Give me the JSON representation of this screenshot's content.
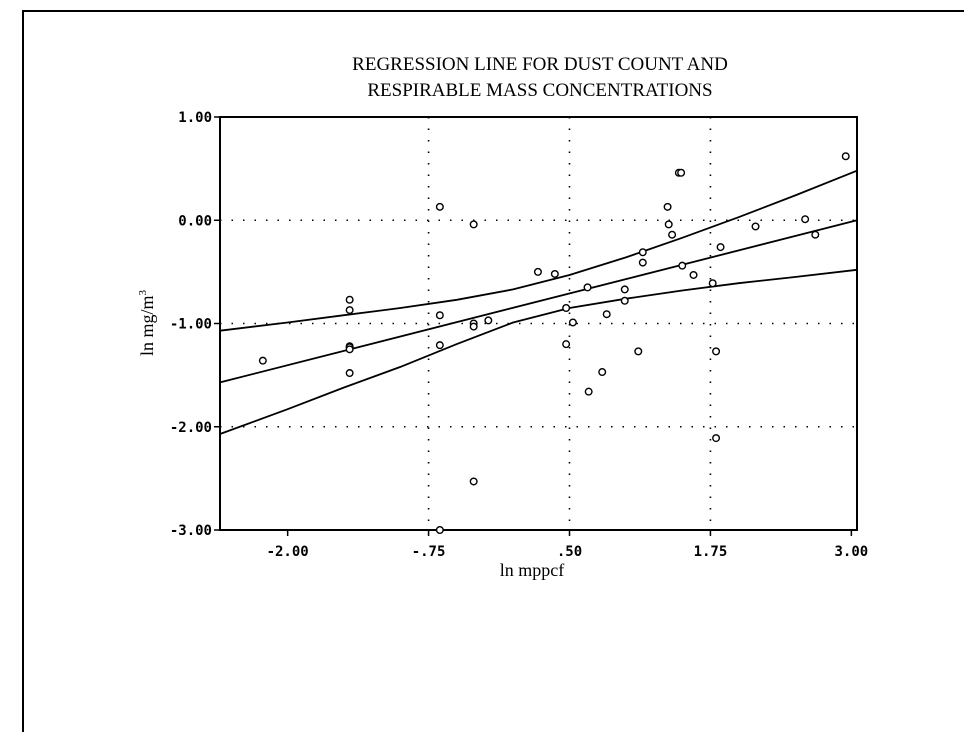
{
  "chart_data": {
    "type": "scatter",
    "title": [
      "REGRESSION LINE FOR DUST COUNT AND",
      "RESPIRABLE MASS CONCENTRATIONS"
    ],
    "xlabel": "ln mppcf",
    "ylabel": "ln mg/m",
    "ylabel_superscript": "3",
    "xlim": [
      -2.6,
      3.05
    ],
    "ylim": [
      -3.0,
      1.0
    ],
    "x_ticks": [
      -2.0,
      -0.75,
      0.5,
      1.75,
      3.0
    ],
    "x_tick_labels": [
      "-2.00",
      "-.75",
      ".50",
      "1.75",
      "3.00"
    ],
    "y_ticks": [
      1.0,
      0.0,
      -1.0,
      -2.0,
      -3.0
    ],
    "y_tick_labels": [
      "1.00",
      "0.00",
      "-1.00",
      "-2.00",
      "-3.00"
    ],
    "grid": true,
    "grid_style": "dotted",
    "grid_x": [
      -0.75,
      0.5,
      1.75
    ],
    "grid_y": [
      0.0,
      -1.0,
      -2.0
    ],
    "points": [
      [
        -2.22,
        -1.36
      ],
      [
        -1.45,
        -0.77
      ],
      [
        -1.45,
        -0.87
      ],
      [
        -1.45,
        -1.22
      ],
      [
        -1.45,
        -1.23
      ],
      [
        -1.45,
        -1.25
      ],
      [
        -1.45,
        -1.48
      ],
      [
        -0.65,
        0.13
      ],
      [
        -0.65,
        -0.92
      ],
      [
        -0.65,
        -1.21
      ],
      [
        -0.65,
        -3.0
      ],
      [
        -0.35,
        -0.04
      ],
      [
        -0.35,
        -1.0
      ],
      [
        -0.35,
        -1.03
      ],
      [
        -0.35,
        -2.53
      ],
      [
        -0.22,
        -0.97
      ],
      [
        0.22,
        -0.5
      ],
      [
        0.37,
        -0.52
      ],
      [
        0.47,
        -0.85
      ],
      [
        0.47,
        -1.2
      ],
      [
        0.53,
        -0.99
      ],
      [
        0.66,
        -0.65
      ],
      [
        0.67,
        -1.66
      ],
      [
        0.79,
        -1.47
      ],
      [
        0.83,
        -0.91
      ],
      [
        0.99,
        -0.67
      ],
      [
        0.99,
        -0.78
      ],
      [
        1.11,
        -1.27
      ],
      [
        1.15,
        -0.31
      ],
      [
        1.15,
        -0.41
      ],
      [
        1.37,
        0.13
      ],
      [
        1.38,
        -0.04
      ],
      [
        1.41,
        -0.14
      ],
      [
        1.47,
        0.46
      ],
      [
        1.49,
        0.46
      ],
      [
        1.5,
        -0.44
      ],
      [
        1.6,
        -0.53
      ],
      [
        1.77,
        -0.61
      ],
      [
        1.8,
        -1.27
      ],
      [
        1.8,
        -2.11
      ],
      [
        1.84,
        -0.26
      ],
      [
        2.15,
        -0.06
      ],
      [
        2.59,
        0.01
      ],
      [
        2.68,
        -0.14
      ],
      [
        2.95,
        0.62
      ]
    ],
    "regression_line": {
      "x": [
        -2.6,
        3.05
      ],
      "y": [
        -1.57,
        0.0
      ]
    },
    "upper_band": {
      "x": [
        -2.6,
        -2.0,
        -1.5,
        -1.0,
        -0.5,
        0.0,
        0.5,
        1.0,
        1.5,
        2.0,
        2.5,
        3.05
      ],
      "y": [
        -1.07,
        -0.99,
        -0.92,
        -0.85,
        -0.77,
        -0.67,
        -0.53,
        -0.36,
        -0.17,
        0.03,
        0.24,
        0.48
      ]
    },
    "lower_band": {
      "x": [
        -2.6,
        -2.0,
        -1.5,
        -1.0,
        -0.5,
        0.0,
        0.5,
        1.0,
        1.5,
        2.0,
        2.5,
        3.05
      ],
      "y": [
        -2.07,
        -1.83,
        -1.62,
        -1.42,
        -1.2,
        -0.99,
        -0.85,
        -0.76,
        -0.68,
        -0.61,
        -0.55,
        -0.48
      ]
    }
  }
}
